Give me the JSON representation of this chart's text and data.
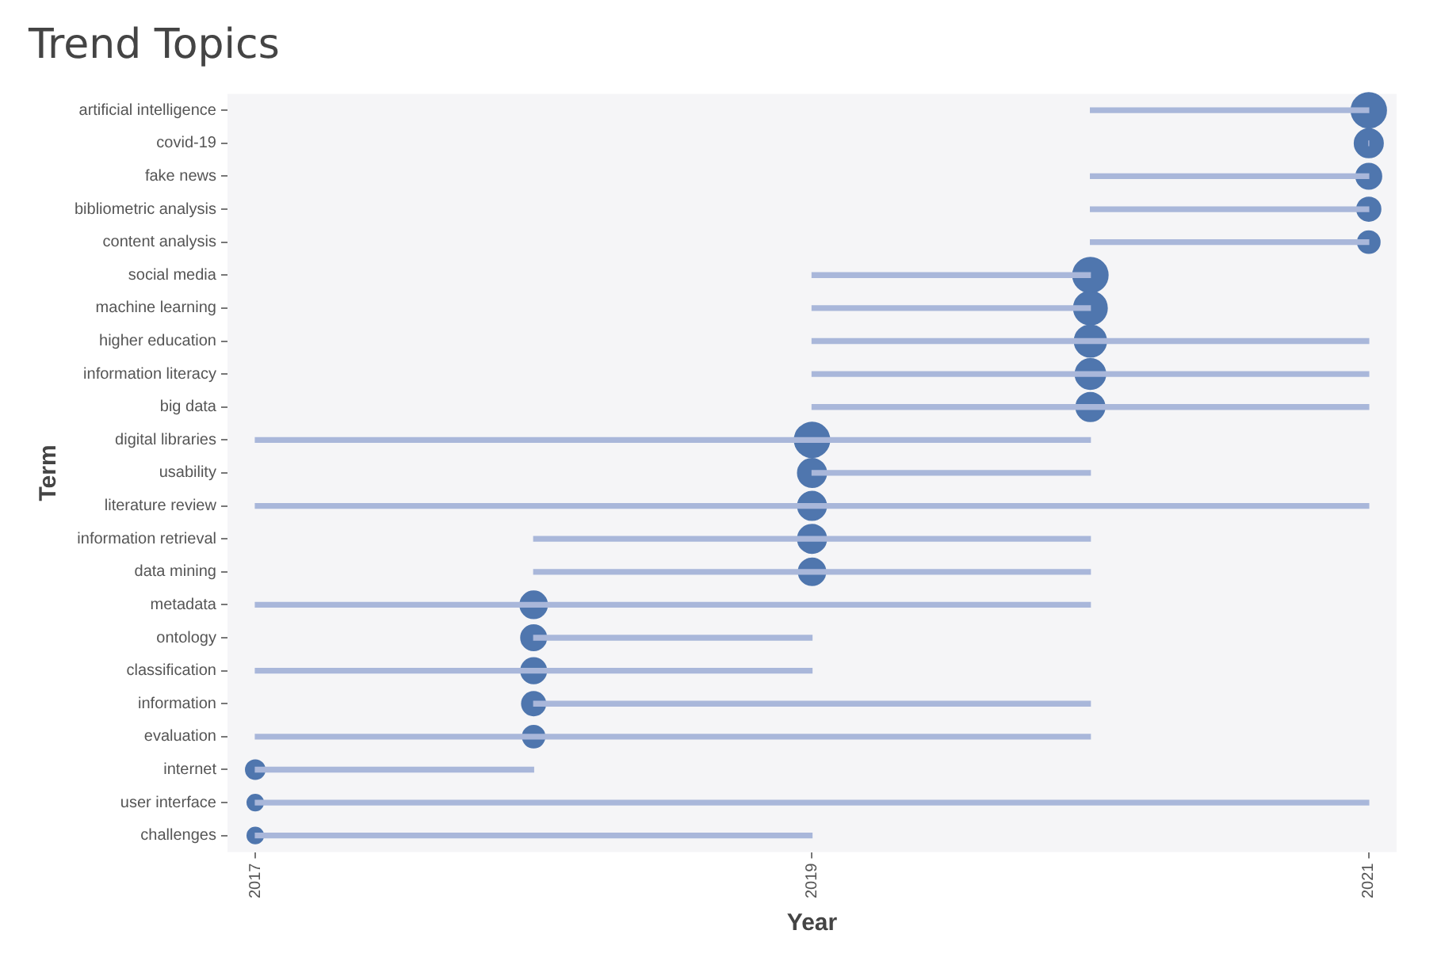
{
  "chart_data": {
    "type": "bar",
    "orientation": "horizontal",
    "title": "Trend Topics",
    "xlabel": "Year",
    "ylabel": "Term",
    "categories": [
      "artificial intelligence",
      "covid-19",
      "fake news",
      "bibliometric analysis",
      "content analysis",
      "social media",
      "machine learning",
      "higher education",
      "information literacy",
      "big data",
      "digital libraries",
      "usability",
      "literature review",
      "information retrieval",
      "data mining",
      "metadata",
      "ontology",
      "classification",
      "information",
      "evaluation",
      "internet",
      "user interface",
      "challenges"
    ],
    "series": [
      {
        "color": "#a9b7da",
        "base": [
          2020,
          2021,
          2020,
          2020,
          2020,
          2019,
          2019,
          2019,
          2019,
          2019,
          2017,
          2019,
          2017,
          2018,
          2018,
          2017,
          2018,
          2017,
          2018,
          2017,
          2017,
          2017,
          2017
        ],
        "values": [
          1,
          0,
          1,
          1,
          1,
          1,
          1,
          2,
          2,
          2,
          3,
          1,
          4,
          2,
          2,
          3,
          1,
          2,
          2,
          3,
          1,
          4,
          2
        ]
      },
      {
        "type": "bubble",
        "color": "#4f76ae",
        "values": [
          2021,
          2021,
          2021,
          2021,
          2021,
          2020,
          2020,
          2020,
          2020,
          2020,
          2019,
          2019,
          2019,
          2019,
          2019,
          2018,
          2018,
          2018,
          2018,
          2018,
          2017,
          2017,
          2017
        ],
        "sizes": [
          1,
          0.67,
          0.53,
          0.46,
          0.4,
          1,
          0.91,
          0.83,
          0.75,
          0.67,
          1,
          0.67,
          0.67,
          0.67,
          0.6,
          0.6,
          0.53,
          0.53,
          0.46,
          0.4,
          0.3,
          0.21,
          0.21
        ]
      }
    ],
    "xlim": [
      2016.9,
      2021.1
    ],
    "xticks": [
      2017,
      2019,
      2021
    ],
    "grid": false,
    "legend": false
  }
}
